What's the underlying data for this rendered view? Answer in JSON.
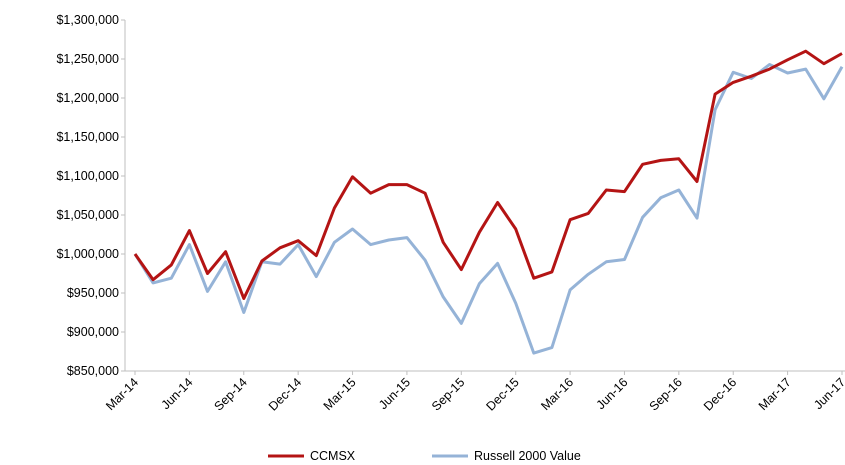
{
  "chart_data": {
    "type": "line",
    "categories": [
      "Mar-14",
      null,
      null,
      "Jun-14",
      null,
      null,
      "Sep-14",
      null,
      null,
      "Dec-14",
      null,
      null,
      "Mar-15",
      null,
      null,
      "Jun-15",
      null,
      null,
      "Sep-15",
      null,
      null,
      "Dec-15",
      null,
      null,
      "Mar-16",
      null,
      null,
      "Jun-16",
      null,
      null,
      "Sep-16",
      null,
      null,
      "Dec-16",
      null,
      null,
      "Mar-17",
      null,
      null,
      "Jun-17"
    ],
    "series": [
      {
        "name": "CCMSX",
        "color": "#b41414",
        "values": [
          1000000,
          967000,
          986000,
          1030000,
          975000,
          1003000,
          943000,
          991000,
          1008000,
          1017000,
          998000,
          1059000,
          1099000,
          1078000,
          1089000,
          1089000,
          1078000,
          1015000,
          980000,
          1028000,
          1066000,
          1032000,
          969000,
          977000,
          1044000,
          1052000,
          1082000,
          1080000,
          1115000,
          1120000,
          1122000,
          1093000,
          1205000,
          1220000,
          1228000,
          1237000,
          1249000,
          1260000,
          1244000,
          1257000
        ]
      },
      {
        "name": "Russell 2000 Value",
        "color": "#95b3d7",
        "values": [
          1000000,
          963000,
          969000,
          1012000,
          952000,
          990000,
          925000,
          990000,
          987000,
          1012000,
          971000,
          1015000,
          1032000,
          1012000,
          1018000,
          1021000,
          992000,
          945000,
          911000,
          962000,
          988000,
          937000,
          873000,
          880000,
          954000,
          974000,
          990000,
          993000,
          1047000,
          1072000,
          1082000,
          1046000,
          1185000,
          1233000,
          1225000,
          1243000,
          1232000,
          1237000,
          1199000,
          1240000
        ]
      }
    ],
    "ylim": [
      850000,
      1300000
    ],
    "yticks": [
      {
        "value": 850000,
        "label": "$850,000"
      },
      {
        "value": 900000,
        "label": "$900,000"
      },
      {
        "value": 950000,
        "label": "$950,000"
      },
      {
        "value": 1000000,
        "label": "$1,000,000"
      },
      {
        "value": 1050000,
        "label": "$1,050,000"
      },
      {
        "value": 1100000,
        "label": "$1,100,000"
      },
      {
        "value": 1150000,
        "label": "$1,150,000"
      },
      {
        "value": 1200000,
        "label": "$1,200,000"
      },
      {
        "value": 1250000,
        "label": "$1,250,000"
      },
      {
        "value": 1300000,
        "label": "$1,300,000"
      }
    ],
    "grid": false,
    "legend": "bottom"
  }
}
